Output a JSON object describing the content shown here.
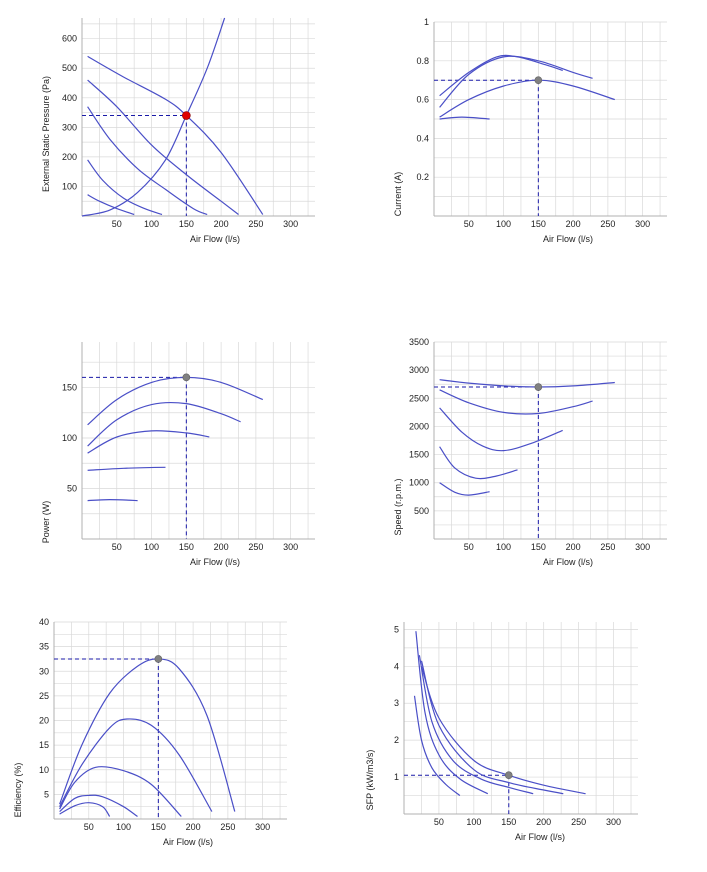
{
  "colors": {
    "curve": "#4a4fc7",
    "operating_line": "#1a1aa8",
    "grid": "#d9d9d9",
    "axis": "#b0b0b0",
    "marker_red": "#e00000",
    "marker_grey": "#808080"
  },
  "chart_data": [
    {
      "id": "pressure",
      "type": "line",
      "title": "",
      "xlabel": "Air Flow (l/s)",
      "ylabel": "External Static Pressure (Pa)",
      "xlim": [
        0,
        335
      ],
      "ylim": [
        0,
        670
      ],
      "xticks": [
        50,
        100,
        150,
        200,
        250,
        300
      ],
      "yticks": [
        100,
        200,
        300,
        400,
        500,
        600
      ],
      "grid": true,
      "marker": {
        "color": "red"
      },
      "series": [
        {
          "x": [
            8,
            60,
            120,
            150,
            200,
            260
          ],
          "y": [
            540,
            470,
            395,
            340,
            215,
            5
          ]
        },
        {
          "x": [
            8,
            50,
            100,
            150,
            200,
            225
          ],
          "y": [
            460,
            370,
            240,
            140,
            50,
            5
          ]
        },
        {
          "x": [
            8,
            40,
            80,
            120,
            160,
            180
          ],
          "y": [
            370,
            260,
            160,
            90,
            25,
            5
          ]
        },
        {
          "x": [
            8,
            30,
            60,
            90,
            115
          ],
          "y": [
            190,
            120,
            60,
            25,
            5
          ]
        },
        {
          "x": [
            8,
            25,
            50,
            75
          ],
          "y": [
            72,
            50,
            25,
            5
          ]
        },
        {
          "x": [
            0,
            40,
            80,
            120,
            150,
            180,
            205
          ],
          "y": [
            0,
            20,
            80,
            190,
            340,
            500,
            670
          ]
        }
      ],
      "operating_point": {
        "x": 150,
        "y": 340
      }
    },
    {
      "id": "current",
      "type": "line",
      "title": "",
      "xlabel": "Air Flow (l/s)",
      "ylabel": "Current (A)",
      "xlim": [
        0,
        335
      ],
      "ylim": [
        0,
        1.0
      ],
      "xticks": [
        50,
        100,
        150,
        200,
        250,
        300
      ],
      "yticks": [
        0.2,
        0.4,
        0.6,
        0.8,
        1
      ],
      "grid": true,
      "marker": {
        "color": "grey"
      },
      "series": [
        {
          "x": [
            8,
            50,
            100,
            150,
            200,
            260
          ],
          "y": [
            0.51,
            0.6,
            0.67,
            0.7,
            0.67,
            0.6
          ]
        },
        {
          "x": [
            8,
            50,
            100,
            150,
            200,
            228
          ],
          "y": [
            0.56,
            0.73,
            0.82,
            0.8,
            0.74,
            0.71
          ]
        },
        {
          "x": [
            8,
            50,
            90,
            120,
            160,
            185
          ],
          "y": [
            0.62,
            0.74,
            0.82,
            0.82,
            0.78,
            0.75
          ]
        },
        {
          "x": [
            8,
            40,
            80
          ],
          "y": [
            0.5,
            0.51,
            0.5
          ]
        }
      ],
      "operating_point": {
        "x": 150,
        "y": 0.7
      }
    },
    {
      "id": "power",
      "type": "line",
      "title": "",
      "xlabel": "Air Flow (l/s)",
      "ylabel": "Power (W)",
      "xlim": [
        0,
        335
      ],
      "ylim": [
        0,
        195
      ],
      "xticks": [
        50,
        100,
        150,
        200,
        250,
        300
      ],
      "yticks": [
        50,
        100,
        150
      ],
      "grid": true,
      "marker": {
        "color": "grey"
      },
      "series": [
        {
          "x": [
            8,
            50,
            100,
            150,
            200,
            260
          ],
          "y": [
            113,
            138,
            155,
            160,
            155,
            138
          ]
        },
        {
          "x": [
            8,
            50,
            100,
            150,
            200,
            228
          ],
          "y": [
            92,
            118,
            133,
            134,
            124,
            116
          ]
        },
        {
          "x": [
            8,
            50,
            100,
            150,
            183
          ],
          "y": [
            85,
            101,
            107,
            105,
            101
          ]
        },
        {
          "x": [
            8,
            60,
            120
          ],
          "y": [
            68,
            70,
            71
          ]
        },
        {
          "x": [
            8,
            40,
            80
          ],
          "y": [
            38,
            39,
            38
          ]
        }
      ],
      "operating_point": {
        "x": 150,
        "y": 160
      }
    },
    {
      "id": "speed",
      "type": "line",
      "title": "",
      "xlabel": "Air Flow (l/s)",
      "ylabel": "Speed (r.p.m.)",
      "xlim": [
        0,
        335
      ],
      "ylim": [
        0,
        3500
      ],
      "xticks": [
        50,
        100,
        150,
        200,
        250,
        300
      ],
      "yticks": [
        500,
        1000,
        1500,
        2000,
        2500,
        3000,
        3500
      ],
      "grid": true,
      "marker": {
        "color": "grey"
      },
      "series": [
        {
          "x": [
            8,
            50,
            100,
            150,
            200,
            260
          ],
          "y": [
            2830,
            2770,
            2720,
            2700,
            2720,
            2780
          ]
        },
        {
          "x": [
            8,
            50,
            100,
            150,
            200,
            228
          ],
          "y": [
            2650,
            2420,
            2250,
            2230,
            2350,
            2450
          ]
        },
        {
          "x": [
            8,
            40,
            70,
            100,
            140,
            185
          ],
          "y": [
            2330,
            1900,
            1650,
            1570,
            1700,
            1930
          ]
        },
        {
          "x": [
            8,
            30,
            60,
            90,
            120
          ],
          "y": [
            1640,
            1260,
            1080,
            1120,
            1230
          ]
        },
        {
          "x": [
            8,
            30,
            50,
            80
          ],
          "y": [
            1000,
            830,
            780,
            840
          ]
        }
      ],
      "operating_point": {
        "x": 150,
        "y": 2700
      }
    },
    {
      "id": "efficiency",
      "type": "line",
      "title": "",
      "xlabel": "Air Flow (l/s)",
      "ylabel": "Efficiency (%)",
      "xlim": [
        0,
        335
      ],
      "ylim": [
        0,
        40
      ],
      "xticks": [
        50,
        100,
        150,
        200,
        250,
        300
      ],
      "yticks": [
        5,
        10,
        15,
        20,
        25,
        30,
        35,
        40
      ],
      "grid": true,
      "marker": {
        "color": "grey"
      },
      "series": [
        {
          "x": [
            8,
            40,
            80,
            120,
            150,
            180,
            220,
            260
          ],
          "y": [
            3,
            15,
            25.5,
            31,
            32.5,
            30.5,
            21,
            1.5
          ]
        },
        {
          "x": [
            8,
            40,
            80,
            105,
            140,
            180,
            227
          ],
          "y": [
            2.5,
            11,
            18.5,
            20.3,
            19,
            13,
            1.5
          ]
        },
        {
          "x": [
            8,
            30,
            60,
            100,
            140,
            183
          ],
          "y": [
            2,
            7.5,
            10.5,
            9.8,
            7,
            0.5
          ]
        },
        {
          "x": [
            8,
            30,
            50,
            70,
            100,
            120
          ],
          "y": [
            1.5,
            4.2,
            4.8,
            4.5,
            2.5,
            0.5
          ]
        },
        {
          "x": [
            8,
            30,
            50,
            70,
            80
          ],
          "y": [
            1,
            2.7,
            3.3,
            2.5,
            0.5
          ]
        }
      ],
      "operating_point": {
        "x": 150,
        "y": 32.5
      }
    },
    {
      "id": "sfp",
      "type": "line",
      "title": "",
      "xlabel": "Air Flow (l/s)",
      "ylabel": "SFP (kW/m3/s)",
      "xlim": [
        0,
        335
      ],
      "ylim": [
        0,
        5.2
      ],
      "xticks": [
        50,
        100,
        150,
        200,
        250,
        300
      ],
      "yticks": [
        1,
        2,
        3,
        4,
        5
      ],
      "grid": true,
      "marker": {
        "color": "grey"
      },
      "series": [
        {
          "x": [
            15,
            25,
            40,
            60,
            80
          ],
          "y": [
            3.2,
            2.0,
            1.25,
            0.8,
            0.5
          ]
        },
        {
          "x": [
            17,
            30,
            50,
            80,
            120
          ],
          "y": [
            4.95,
            2.75,
            1.6,
            0.95,
            0.55
          ]
        },
        {
          "x": [
            22,
            40,
            70,
            110,
            150,
            185
          ],
          "y": [
            4.3,
            2.5,
            1.45,
            0.95,
            0.72,
            0.55
          ]
        },
        {
          "x": [
            25,
            50,
            100,
            150,
            200,
            228
          ],
          "y": [
            4.15,
            2.4,
            1.2,
            0.85,
            0.65,
            0.55
          ]
        },
        {
          "x": [
            25,
            50,
            100,
            150,
            200,
            260
          ],
          "y": [
            4.0,
            2.6,
            1.45,
            1.05,
            0.78,
            0.55
          ]
        }
      ],
      "operating_point": {
        "x": 150,
        "y": 1.05
      }
    }
  ]
}
